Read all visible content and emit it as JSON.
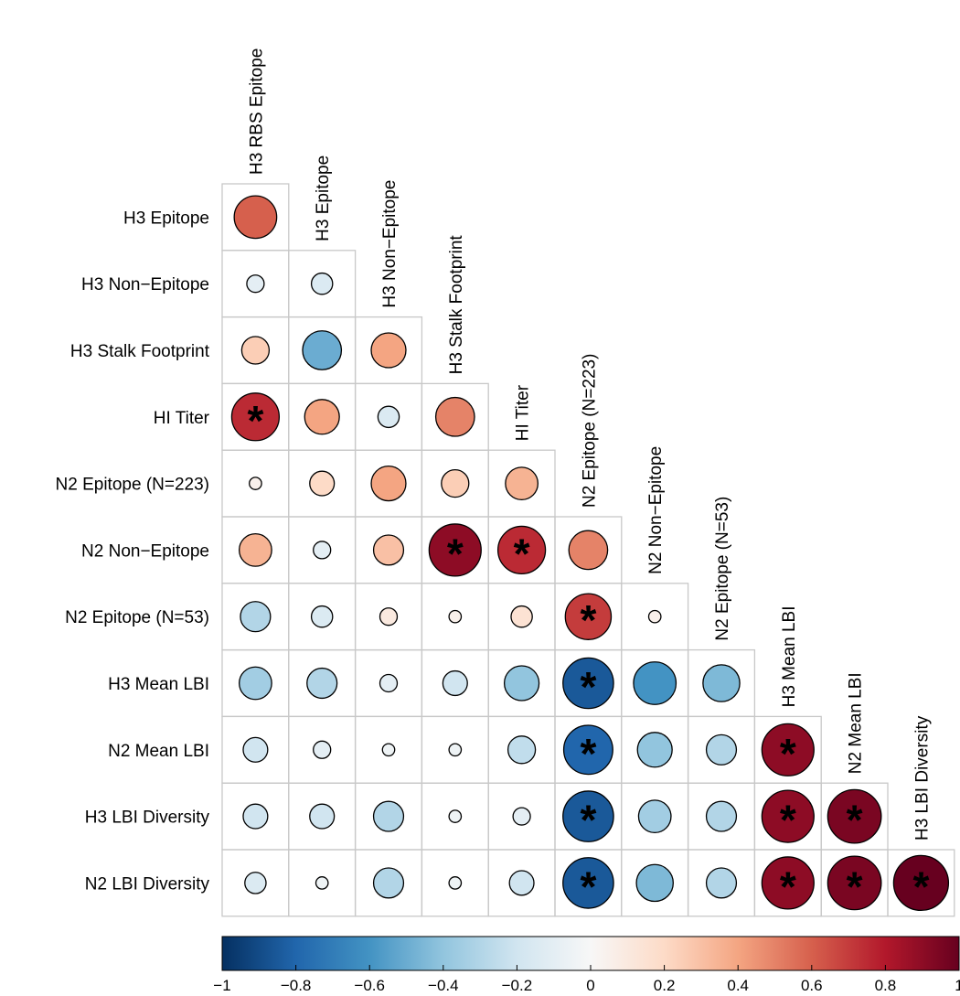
{
  "chart_data": {
    "type": "heatmap",
    "style": "lower-triangle circle correlation matrix",
    "column_labels": [
      "H3 RBS Epitope",
      "H3 Epitope",
      "H3 Non−Epitope",
      "H3 Stalk Footprint",
      "HI Titer",
      "N2 Epitope (N=223)",
      "N2 Non−Epitope",
      "N2 Epitope (N=53)",
      "H3 Mean LBI",
      "N2 Mean LBI",
      "H3 LBI Diversity"
    ],
    "row_labels": [
      "H3 Epitope",
      "H3 Non−Epitope",
      "H3 Stalk Footprint",
      "HI Titer",
      "N2 Epitope (N=223)",
      "N2 Non−Epitope",
      "N2 Epitope (N=53)",
      "H3 Mean LBI",
      "N2 Mean LBI",
      "H3 LBI Diversity",
      "N2 LBI Diversity"
    ],
    "values": [
      [
        0.6
      ],
      [
        -0.1,
        -0.15
      ],
      [
        0.25,
        -0.5,
        0.4
      ],
      [
        0.75,
        0.4,
        -0.15,
        0.5
      ],
      [
        0.05,
        0.2,
        0.4,
        0.25,
        0.35
      ],
      [
        0.35,
        -0.1,
        0.3,
        0.9,
        0.75,
        0.5
      ],
      [
        -0.3,
        -0.15,
        0.1,
        0.05,
        0.15,
        0.7,
        0.05
      ],
      [
        -0.35,
        -0.3,
        -0.1,
        -0.2,
        -0.4,
        -0.85,
        -0.6,
        -0.45
      ],
      [
        -0.2,
        -0.1,
        -0.05,
        -0.05,
        -0.25,
        -0.8,
        -0.4,
        -0.3,
        0.9
      ],
      [
        -0.2,
        -0.2,
        -0.3,
        -0.05,
        -0.1,
        -0.85,
        -0.35,
        -0.3,
        0.9,
        0.95
      ],
      [
        -0.15,
        -0.05,
        -0.3,
        -0.05,
        -0.2,
        -0.85,
        -0.45,
        -0.3,
        0.9,
        0.95,
        1.0
      ]
    ],
    "significant": [
      [
        false
      ],
      [
        false,
        false
      ],
      [
        false,
        false,
        false
      ],
      [
        true,
        false,
        false,
        false
      ],
      [
        false,
        false,
        false,
        false,
        false
      ],
      [
        false,
        false,
        false,
        true,
        true,
        false
      ],
      [
        false,
        false,
        false,
        false,
        false,
        true,
        false
      ],
      [
        false,
        false,
        false,
        false,
        false,
        true,
        false,
        false
      ],
      [
        false,
        false,
        false,
        false,
        false,
        true,
        false,
        false,
        true
      ],
      [
        false,
        false,
        false,
        false,
        false,
        true,
        false,
        false,
        true,
        true
      ],
      [
        false,
        false,
        false,
        false,
        false,
        true,
        false,
        false,
        true,
        true,
        true
      ]
    ],
    "significance_marker": "*",
    "colorbar": {
      "range": [
        -1,
        1
      ],
      "ticks": [
        -1,
        -0.8,
        -0.6,
        -0.4,
        -0.2,
        0,
        0.2,
        0.4,
        0.6,
        0.8,
        1
      ],
      "tick_labels": [
        "−1",
        "−0.8",
        "−0.6",
        "−0.4",
        "−0.2",
        "0",
        "0.2",
        "0.4",
        "0.6",
        "0.8",
        "1"
      ],
      "colors": [
        "#053061",
        "#2166ac",
        "#4393c3",
        "#92c5de",
        "#d1e5f0",
        "#f7f7f7",
        "#fddbc7",
        "#f4a582",
        "#d6604d",
        "#b2182b",
        "#67001f"
      ]
    }
  }
}
